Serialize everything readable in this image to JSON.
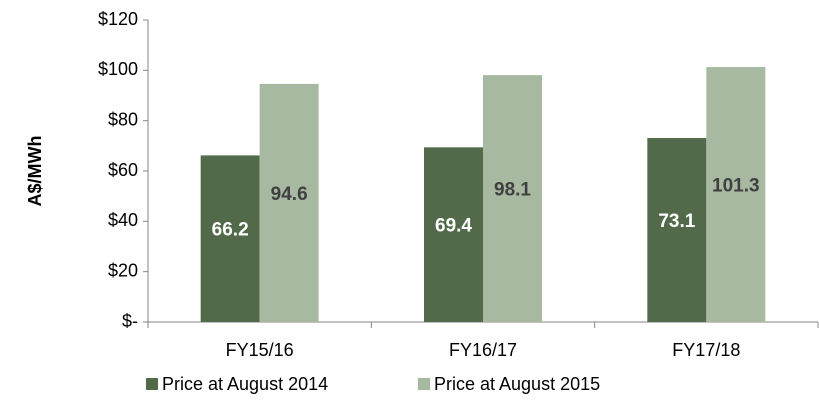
{
  "chart_data": {
    "type": "bar",
    "y_label": "A$/MWh",
    "categories": [
      "FY15/16",
      "FY16/17",
      "FY17/18"
    ],
    "series": [
      {
        "name": "Price at August 2014",
        "color": "#526a4a",
        "values": [
          66.2,
          69.4,
          73.1
        ]
      },
      {
        "name": "Price at August 2015",
        "color": "#a7b9a1",
        "values": [
          94.6,
          98.1,
          101.3
        ]
      }
    ],
    "ylim": [
      0,
      120
    ],
    "yticks": [
      {
        "value": 0,
        "label": "$-"
      },
      {
        "value": 20,
        "label": "$20"
      },
      {
        "value": 40,
        "label": "$40"
      },
      {
        "value": 60,
        "label": "$60"
      },
      {
        "value": 80,
        "label": "$80"
      },
      {
        "value": 100,
        "label": "$100"
      },
      {
        "value": 120,
        "label": "$120"
      }
    ],
    "grid": false,
    "legend": "bottom"
  }
}
